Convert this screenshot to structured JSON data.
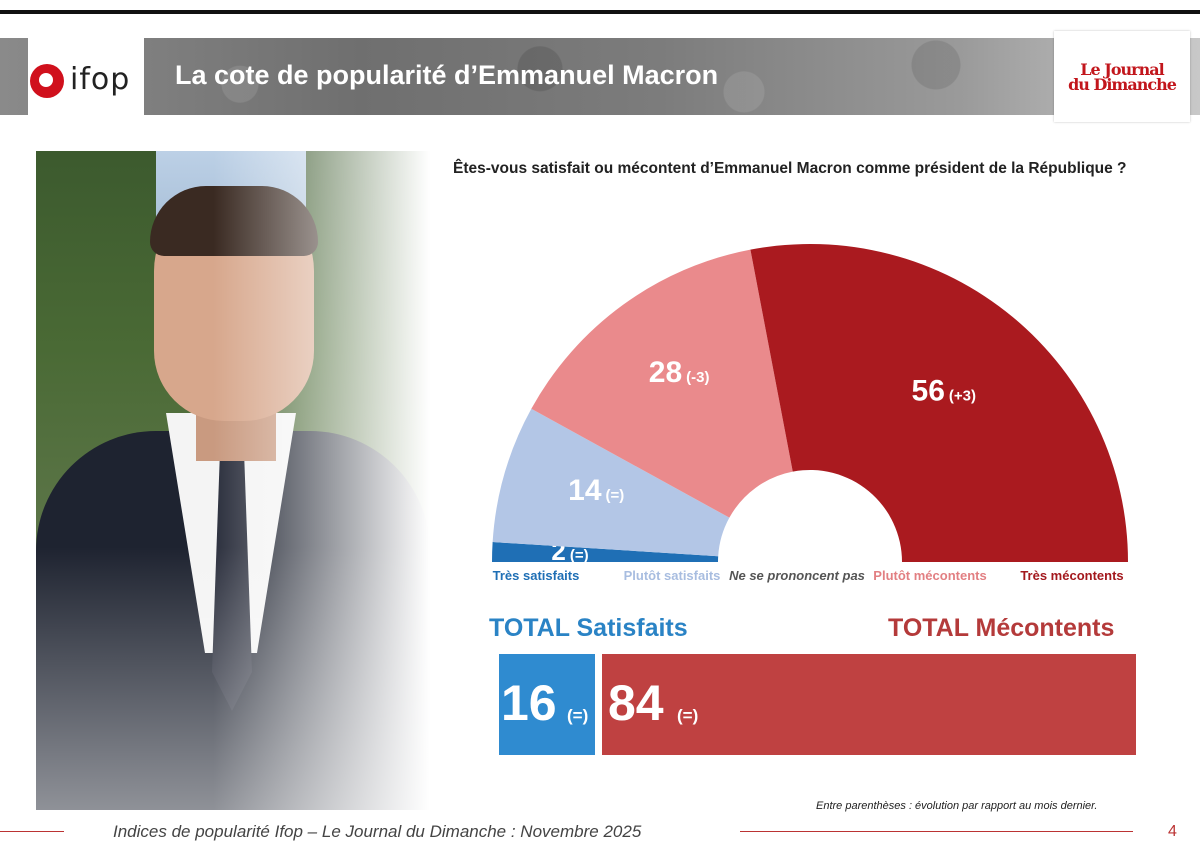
{
  "header": {
    "logo_text": "ifop",
    "title": "La cote de popularité d’Emmanuel Macron",
    "partner_logo_line1": "Le Journal",
    "partner_logo_line2": "du Dimanche"
  },
  "question": "Êtes-vous satisfait ou mécontent d’Emmanuel Macron comme président de la République ?",
  "chart_data": {
    "type": "pie",
    "shape": "half-donut",
    "categories": [
      "Très satisfaits",
      "Plutôt satisfaits",
      "Ne se prononcent pas",
      "Plutôt mécontents",
      "Très mécontents"
    ],
    "values": [
      2,
      14,
      0,
      28,
      56
    ],
    "evolutions": [
      "(=)",
      "(=)",
      "",
      "(-3)",
      "(+3)"
    ],
    "colors": [
      "#1f6fb5",
      "#b3c6e6",
      "#ffffff",
      "#ea8a8c",
      "#aa1a1f"
    ],
    "label_colors": [
      "#1f6fb5",
      "#a8bde0",
      "#555555",
      "#e27f82",
      "#a3181d"
    ],
    "totals": [
      {
        "label": "TOTAL Satisfaits",
        "value": "16",
        "evolution": "(=)",
        "color": "#2f8bd0"
      },
      {
        "label": "TOTAL Mécontents",
        "value": "84",
        "evolution": "(=)",
        "color": "#bf4141"
      }
    ]
  },
  "note": "Entre parenthèses : évolution par rapport au mois dernier.",
  "footer": {
    "text": "Indices de popularité Ifop – Le Journal du Dimanche : Novembre 2025",
    "page": "4"
  }
}
